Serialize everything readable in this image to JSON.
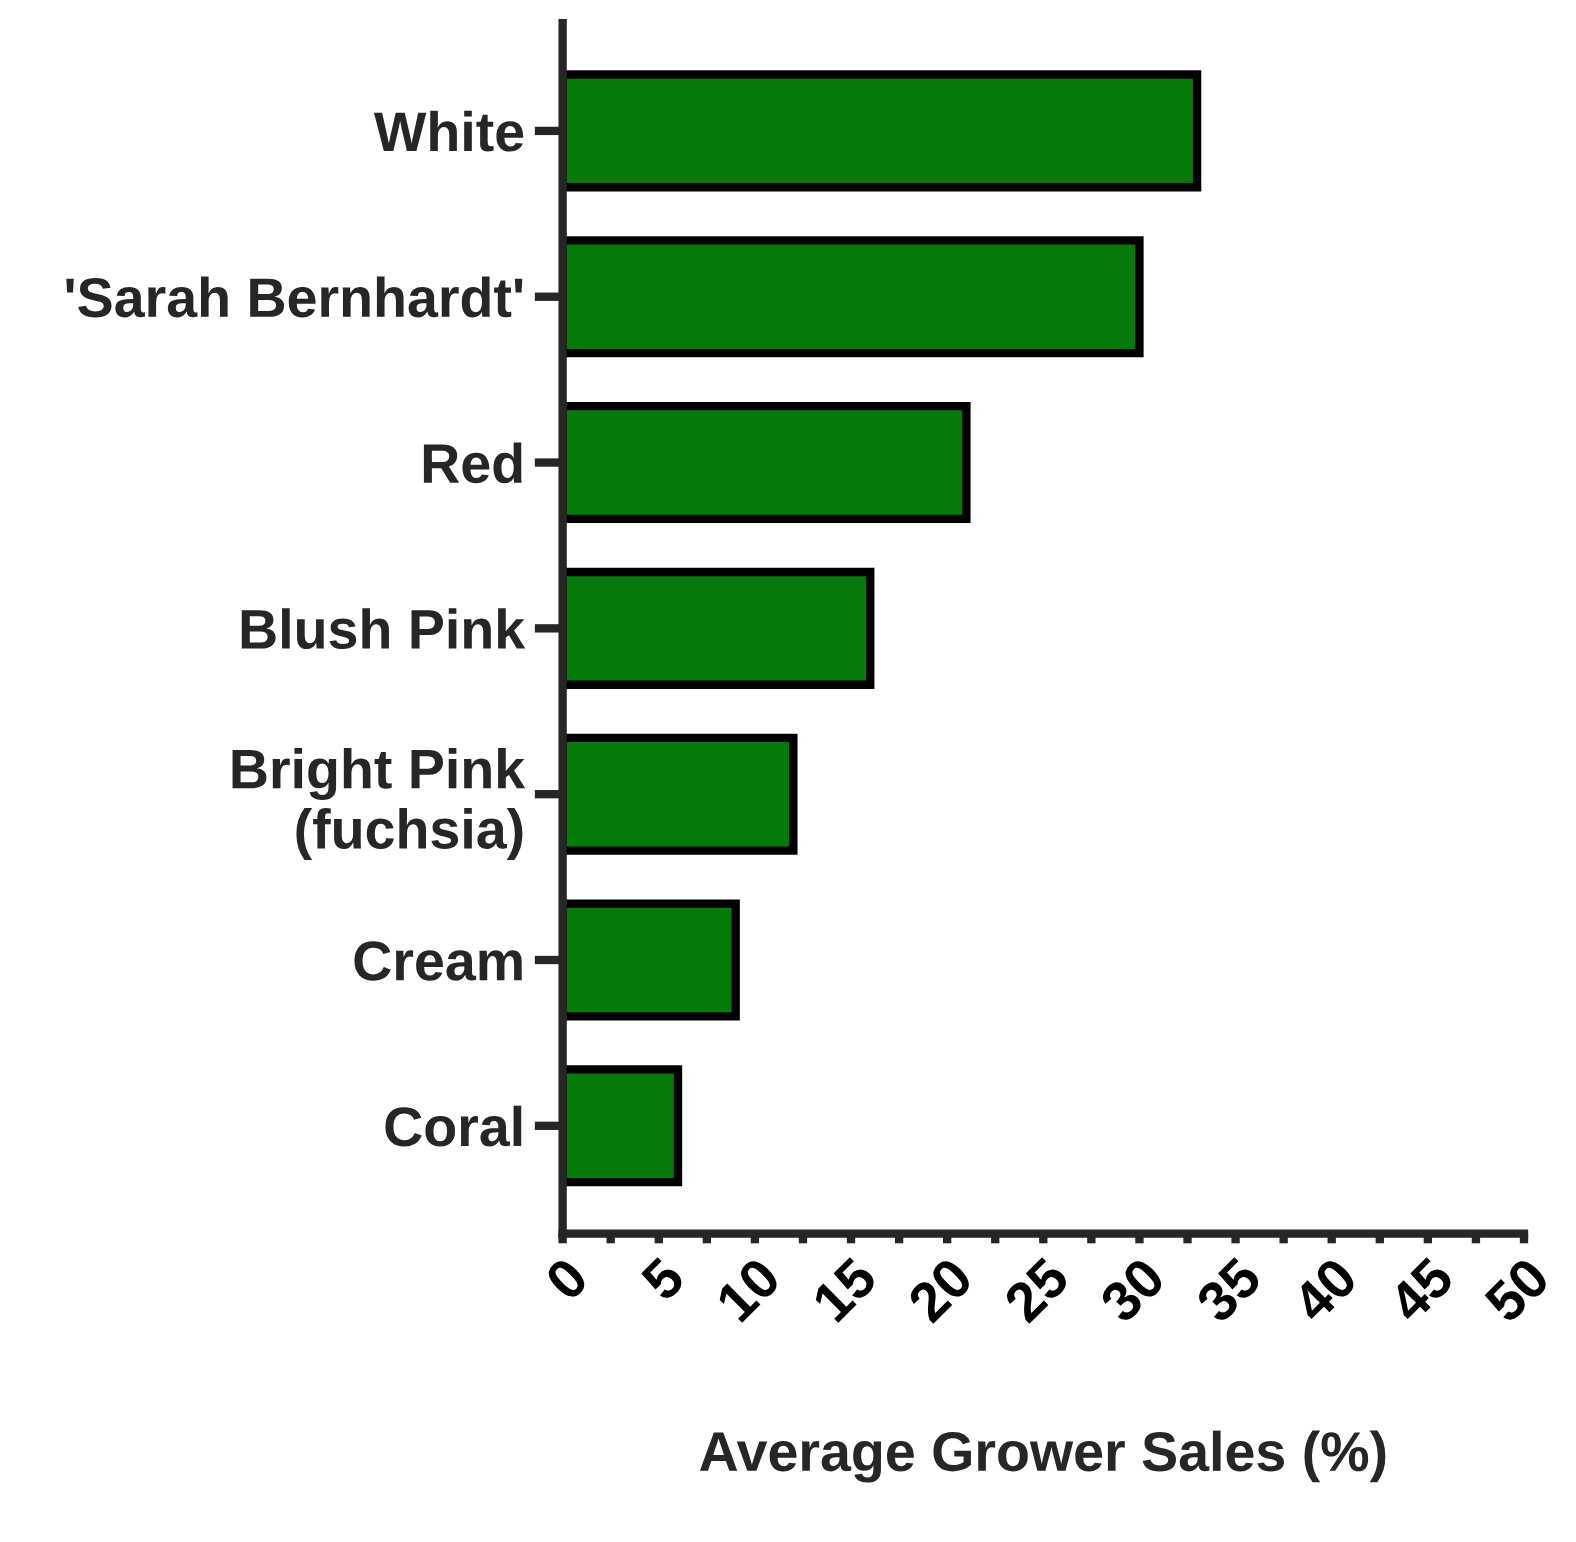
{
  "chart_data": {
    "type": "bar",
    "orientation": "horizontal",
    "xlabel": "Average Grower Sales (%)",
    "categories": [
      "White",
      "'Sarah Bernhardt'",
      "Red",
      "Blush Pink",
      "Bright Pink\n(fuchsia)",
      "Cream",
      "Coral"
    ],
    "values": [
      33,
      30,
      21,
      16,
      12,
      9,
      6
    ],
    "color": "#057a0a",
    "xlim": [
      0,
      50
    ],
    "xticks": [
      0,
      {
        "value": 2.5,
        "label": null
      },
      5,
      {
        "value": 7.5,
        "label": null
      },
      10,
      {
        "value": 12.5,
        "label": null
      },
      15,
      {
        "value": 17.5,
        "label": null
      },
      20,
      {
        "value": 22.5,
        "label": null
      },
      25,
      {
        "value": 27.5,
        "label": null
      },
      30,
      {
        "value": 32.5,
        "label": null
      },
      35,
      {
        "value": 37.5,
        "label": null
      },
      40,
      {
        "value": 42.5,
        "label": null
      },
      45,
      {
        "value": 47.5,
        "label": null
      },
      50
    ],
    "grid": false,
    "legend": false
  }
}
